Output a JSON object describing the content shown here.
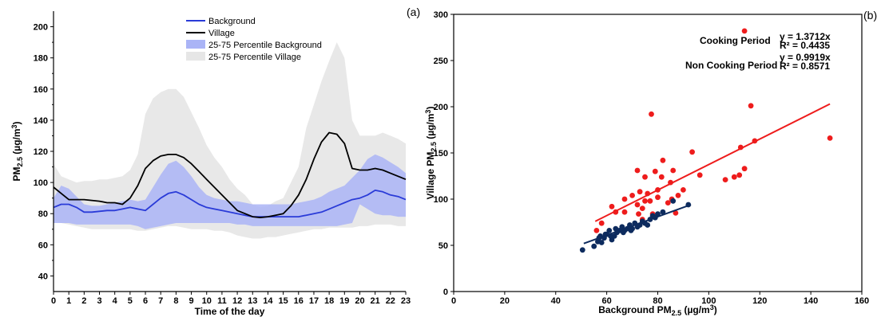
{
  "chart_data": [
    {
      "type": "line",
      "panel_label": "(a)",
      "xlabel": "Time of the day",
      "ylabel_main": "PM",
      "ylabel_sub": "2.5",
      "ylabel_unit": " (µg/m",
      "ylabel_sup": "3",
      "ylabel_close": ")",
      "xlim": [
        0,
        23
      ],
      "ylim": [
        30,
        210
      ],
      "x_ticks": [
        "0",
        "1",
        "2",
        "3",
        "4",
        "5",
        "6",
        "7",
        "8",
        "9",
        "10",
        "11",
        "12",
        "13",
        "14",
        "15",
        "16",
        "17",
        "18",
        "19",
        "20",
        "21",
        "22",
        "23"
      ],
      "y_ticks": [
        "40",
        "60",
        "80",
        "100",
        "120",
        "140",
        "160",
        "180",
        "200"
      ],
      "legend": [
        "Background",
        "Village",
        "25-75 Percentile Background",
        "25-75 Percentile Village"
      ],
      "x": [
        0,
        0.5,
        1,
        1.5,
        2,
        2.5,
        3,
        3.5,
        4,
        4.5,
        5,
        5.5,
        6,
        6.5,
        7,
        7.5,
        8,
        8.5,
        9,
        9.5,
        10,
        10.5,
        11,
        11.5,
        12,
        12.5,
        13,
        13.5,
        14,
        14.5,
        15,
        15.5,
        16,
        16.5,
        17,
        17.5,
        18,
        18.5,
        19,
        19.5,
        20,
        20.5,
        21,
        21.5,
        22,
        22.5,
        23
      ],
      "series": [
        {
          "name": "Background",
          "color": "#2a3bd8",
          "values": [
            84,
            86,
            86,
            84,
            81,
            81,
            81.5,
            82,
            82,
            83,
            84,
            83,
            82,
            86,
            90,
            93,
            94,
            92,
            89,
            86,
            84,
            83,
            82,
            81,
            80,
            79,
            78,
            78,
            78,
            78,
            78,
            78,
            78,
            79,
            80,
            81,
            83,
            85,
            87,
            89,
            90,
            92,
            95,
            94,
            92,
            91,
            89
          ]
        },
        {
          "name": "Village",
          "color": "#000000",
          "values": [
            97,
            93,
            89,
            89,
            89,
            88.5,
            88,
            87,
            87,
            86,
            90,
            98,
            109,
            114,
            117,
            118,
            118,
            116,
            112,
            107,
            102,
            97,
            92,
            87,
            82,
            80,
            78,
            77.5,
            78,
            79,
            80,
            85,
            92,
            102,
            115,
            126,
            132,
            131,
            125,
            109,
            108,
            108,
            109,
            108,
            106,
            104,
            102
          ]
        }
      ],
      "bands": [
        {
          "name": "25-75 Percentile Village",
          "color": "#e6e6e6",
          "upper": [
            112,
            104,
            102,
            100,
            101,
            101,
            102,
            102,
            103,
            104,
            108,
            118,
            144,
            154,
            158,
            160,
            160,
            155,
            145,
            135,
            124,
            116,
            110,
            102,
            96,
            92,
            86,
            84,
            85,
            88,
            90,
            100,
            110,
            135,
            150,
            165,
            178,
            190,
            180,
            140,
            130,
            130,
            130,
            132,
            130,
            128,
            125
          ],
          "lower": [
            76,
            74,
            73,
            72,
            71,
            70,
            70,
            70,
            70,
            70,
            70,
            69,
            69,
            70,
            71,
            72,
            72,
            71,
            70,
            70,
            70,
            69,
            69,
            68,
            66,
            65,
            64,
            64,
            65,
            65,
            66,
            67,
            68,
            69,
            70,
            70,
            71,
            71,
            71,
            71,
            72,
            72,
            73,
            73,
            73,
            72,
            72
          ]
        },
        {
          "name": "25-75 Percentile Background",
          "color": "#aab4f6",
          "upper": [
            90,
            98,
            96,
            91,
            86,
            85,
            85,
            86,
            87,
            88,
            89,
            88,
            89,
            97,
            105,
            112,
            114,
            110,
            104,
            97,
            92,
            90,
            89,
            88,
            88,
            87,
            86,
            86,
            86,
            86,
            86,
            86,
            87,
            88,
            89,
            91,
            94,
            96,
            98,
            103,
            108,
            115,
            118,
            116,
            113,
            110,
            106
          ],
          "lower": [
            74,
            74,
            74,
            73,
            73,
            73,
            73,
            73,
            73,
            73,
            73,
            72,
            70,
            71,
            72,
            73,
            74,
            74,
            74,
            74,
            74,
            74,
            74,
            74,
            73,
            73,
            72,
            72,
            72,
            72,
            72,
            72,
            72,
            72,
            72,
            72,
            72,
            72,
            73,
            74,
            86,
            83,
            80,
            79,
            79,
            78,
            78
          ]
        }
      ]
    },
    {
      "type": "scatter",
      "panel_label": "(b)",
      "xlabel_main": "Background PM",
      "xlabel_sub": "2.5",
      "xlabel_unit": " (µg/m",
      "xlabel_sup": "3",
      "xlabel_close": ")",
      "ylabel_main": "Village PM",
      "ylabel_sub": "2.5",
      "ylabel_unit": " (µg/m",
      "ylabel_sup": "3",
      "ylabel_close": ")",
      "xlim": [
        0,
        160
      ],
      "ylim": [
        0,
        300
      ],
      "x_ticks": [
        "0",
        "20",
        "40",
        "60",
        "80",
        "100",
        "120",
        "140",
        "160"
      ],
      "y_ticks": [
        "0",
        "50",
        "100",
        "150",
        "200",
        "250",
        "300"
      ],
      "annotations": [
        {
          "text": "Cooking Period",
          "color": "#e8281e"
        },
        {
          "text": "y = 1.3712x",
          "color": "#e8281e"
        },
        {
          "text": "R² = 0.4435",
          "color": "#e8281e"
        },
        {
          "text": "Non Cooking Period",
          "color": "#1a3a6e"
        },
        {
          "text": "y = 0.9919x",
          "color": "#1a3a6e"
        },
        {
          "text": "R² = 0.8571",
          "color": "#1a3a6e"
        }
      ],
      "series": [
        {
          "name": "Cooking Period",
          "color": "#ee1c1c",
          "trend": [
            [
              55.5,
              76
            ],
            [
              147.5,
              203
            ]
          ],
          "points": [
            [
              114,
              282
            ],
            [
              116.5,
              201
            ],
            [
              77.5,
              192
            ],
            [
              147.5,
              166
            ],
            [
              118,
              163
            ],
            [
              112.5,
              156
            ],
            [
              93.5,
              151
            ],
            [
              82,
              142
            ],
            [
              114,
              133
            ],
            [
              79,
              130
            ],
            [
              72,
              131
            ],
            [
              86,
              131
            ],
            [
              96.5,
              126
            ],
            [
              75,
              124
            ],
            [
              81.5,
              124
            ],
            [
              112,
              126
            ],
            [
              106.5,
              121
            ],
            [
              110,
              124
            ],
            [
              85,
              118
            ],
            [
              80,
              110
            ],
            [
              76,
              106
            ],
            [
              73,
              108
            ],
            [
              67,
              100
            ],
            [
              70,
              104
            ],
            [
              75,
              98
            ],
            [
              72,
              94
            ],
            [
              74,
              90
            ],
            [
              62,
              92
            ],
            [
              72.5,
              84
            ],
            [
              78,
              84
            ],
            [
              87,
              85
            ],
            [
              85.5,
              100
            ],
            [
              90,
              110
            ],
            [
              88,
              104
            ],
            [
              84,
              96
            ],
            [
              77,
              98
            ],
            [
              63.5,
              86
            ],
            [
              74,
              78
            ],
            [
              67,
              86
            ],
            [
              56,
              66
            ],
            [
              58,
              74
            ],
            [
              80,
              102
            ]
          ]
        },
        {
          "name": "Non Cooking Period",
          "color": "#0d2b5e",
          "trend": [
            [
              51,
              52
            ],
            [
              93,
              94
            ]
          ],
          "points": [
            [
              50.5,
              45
            ],
            [
              55,
              49
            ],
            [
              56.5,
              54
            ],
            [
              57.5,
              60
            ],
            [
              58,
              53
            ],
            [
              59,
              58
            ],
            [
              60,
              62
            ],
            [
              61,
              66
            ],
            [
              62,
              56
            ],
            [
              63,
              60
            ],
            [
              63.5,
              68
            ],
            [
              64,
              64
            ],
            [
              65,
              66
            ],
            [
              66,
              70
            ],
            [
              67,
              66
            ],
            [
              68,
              68
            ],
            [
              69,
              72
            ],
            [
              70,
              68
            ],
            [
              71,
              74
            ],
            [
              72,
              70
            ],
            [
              73,
              72
            ],
            [
              74,
              76
            ],
            [
              75,
              74
            ],
            [
              76,
              72
            ],
            [
              77,
              78
            ],
            [
              78,
              82
            ],
            [
              79,
              80
            ],
            [
              80,
              84
            ],
            [
              82,
              86
            ],
            [
              86,
              98
            ],
            [
              92,
              94
            ],
            [
              69.5,
              66
            ],
            [
              66.5,
              64
            ],
            [
              61.5,
              60
            ],
            [
              59.5,
              62
            ],
            [
              57,
              58
            ]
          ]
        }
      ]
    }
  ]
}
